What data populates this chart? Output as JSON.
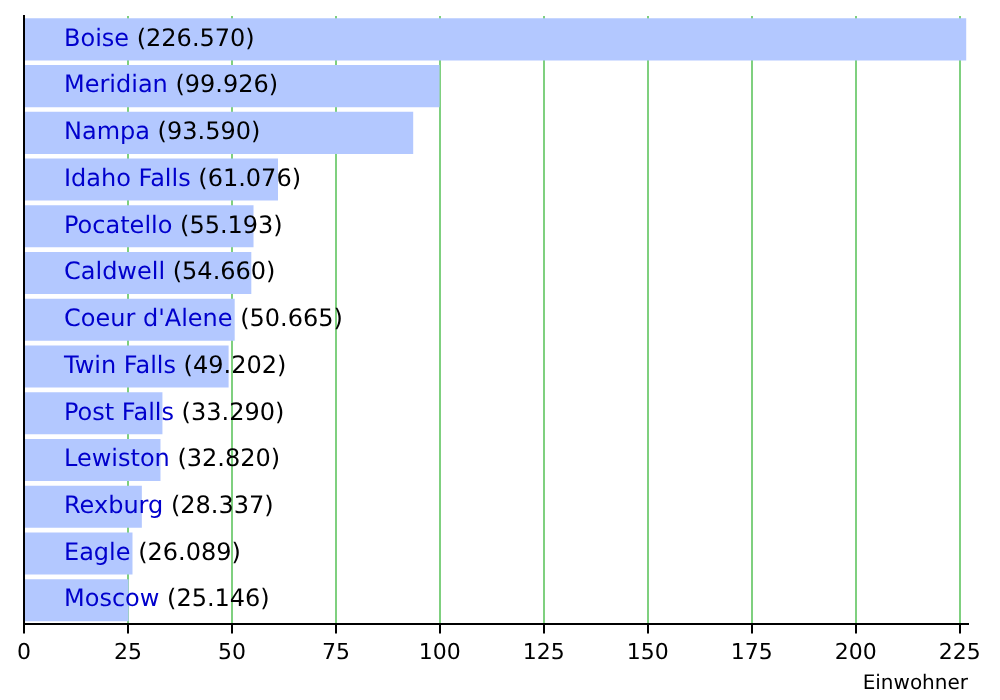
{
  "chart_data": {
    "type": "bar",
    "orientation": "horizontal",
    "xlabel": "Einwohner",
    "categories": [
      "Boise",
      "Meridian",
      "Nampa",
      "Idaho Falls",
      "Pocatello",
      "Caldwell",
      "Coeur d'Alene",
      "Twin Falls",
      "Post Falls",
      "Lewiston",
      "Rexburg",
      "Eagle",
      "Moscow"
    ],
    "values": [
      226.57,
      99.926,
      93.59,
      61.076,
      55.193,
      54.66,
      50.665,
      49.202,
      33.29,
      32.82,
      28.337,
      26.089,
      25.146
    ],
    "value_labels": [
      "(226.570)",
      "(99.926)",
      "(93.590)",
      "(61.076)",
      "(55.193)",
      "(54.660)",
      "(50.665)",
      "(49.202)",
      "(33.290)",
      "(32.820)",
      "(28.337)",
      "(26.089)",
      "(25.146)"
    ],
    "color": "#b3c8ff",
    "xlim": [
      0,
      227
    ],
    "xticks": [
      0,
      25,
      50,
      75,
      100,
      125,
      150,
      175,
      200,
      225
    ],
    "grid": "x",
    "tick_labels": "x",
    "legend": false
  }
}
